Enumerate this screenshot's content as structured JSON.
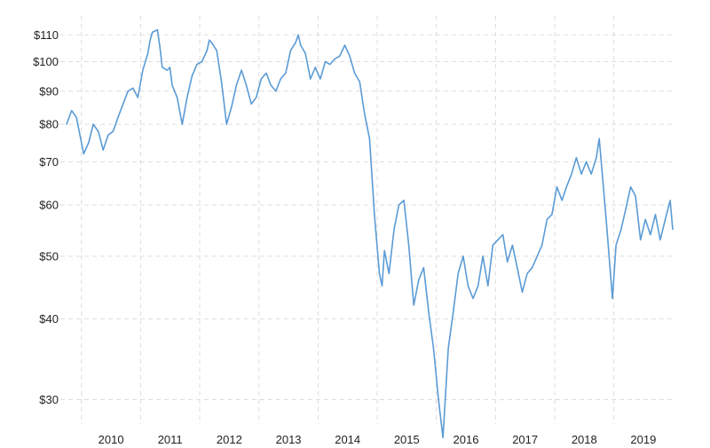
{
  "chart_data": {
    "type": "line",
    "title": "",
    "xlabel": "",
    "ylabel": "",
    "y_scale": "log",
    "ylim": [
      27.5,
      114
    ],
    "xlim": [
      "2009-10-01",
      "2019-12-31"
    ],
    "grid": true,
    "legend": "none",
    "y_ticks": [
      {
        "value": 110,
        "label": "$110"
      },
      {
        "value": 100,
        "label": "$100"
      },
      {
        "value": 90,
        "label": "$90"
      },
      {
        "value": 80,
        "label": "$80"
      },
      {
        "value": 70,
        "label": "$70"
      },
      {
        "value": 60,
        "label": "$60"
      },
      {
        "value": 50,
        "label": "$50"
      },
      {
        "value": 40,
        "label": "$40"
      },
      {
        "value": 30,
        "label": "$30"
      }
    ],
    "x_ticks": [
      {
        "value": "2010-01-01",
        "label": "2010"
      },
      {
        "value": "2011-01-01",
        "label": "2011"
      },
      {
        "value": "2012-01-01",
        "label": "2012"
      },
      {
        "value": "2013-01-01",
        "label": "2013"
      },
      {
        "value": "2014-01-01",
        "label": "2014"
      },
      {
        "value": "2015-01-01",
        "label": "2015"
      },
      {
        "value": "2016-01-01",
        "label": "2016"
      },
      {
        "value": "2017-01-01",
        "label": "2017"
      },
      {
        "value": "2018-01-01",
        "label": "2018"
      },
      {
        "value": "2019-01-01",
        "label": "2019"
      }
    ],
    "series": [
      {
        "color": "#5b9bd5",
        "points": [
          [
            "2009-10-01",
            80
          ],
          [
            "2009-11-01",
            84
          ],
          [
            "2009-12-01",
            82
          ],
          [
            "2010-01-15",
            72
          ],
          [
            "2010-02-15",
            75
          ],
          [
            "2010-03-15",
            80
          ],
          [
            "2010-04-15",
            78
          ],
          [
            "2010-05-15",
            73
          ],
          [
            "2010-06-15",
            77
          ],
          [
            "2010-07-15",
            78
          ],
          [
            "2010-08-15",
            82
          ],
          [
            "2010-09-15",
            86
          ],
          [
            "2010-10-15",
            90
          ],
          [
            "2010-11-15",
            91
          ],
          [
            "2010-12-15",
            88
          ],
          [
            "2011-01-15",
            97
          ],
          [
            "2011-02-15",
            103
          ],
          [
            "2011-03-01",
            108
          ],
          [
            "2011-03-15",
            111
          ],
          [
            "2011-04-15",
            112
          ],
          [
            "2011-05-01",
            105
          ],
          [
            "2011-05-15",
            98
          ],
          [
            "2011-06-15",
            97
          ],
          [
            "2011-07-01",
            98
          ],
          [
            "2011-07-15",
            92
          ],
          [
            "2011-08-15",
            88
          ],
          [
            "2011-09-15",
            80
          ],
          [
            "2011-10-15",
            88
          ],
          [
            "2011-11-15",
            95
          ],
          [
            "2011-12-15",
            99
          ],
          [
            "2012-01-15",
            100
          ],
          [
            "2012-02-15",
            104
          ],
          [
            "2012-03-01",
            108
          ],
          [
            "2012-03-15",
            107
          ],
          [
            "2012-04-15",
            104
          ],
          [
            "2012-05-15",
            93
          ],
          [
            "2012-06-15",
            80
          ],
          [
            "2012-07-15",
            85
          ],
          [
            "2012-08-15",
            92
          ],
          [
            "2012-09-15",
            97
          ],
          [
            "2012-10-15",
            92
          ],
          [
            "2012-11-15",
            86
          ],
          [
            "2012-12-15",
            88
          ],
          [
            "2013-01-15",
            94
          ],
          [
            "2013-02-15",
            96
          ],
          [
            "2013-03-15",
            92
          ],
          [
            "2013-04-15",
            90
          ],
          [
            "2013-05-15",
            94
          ],
          [
            "2013-06-15",
            96
          ],
          [
            "2013-07-15",
            104
          ],
          [
            "2013-08-15",
            107
          ],
          [
            "2013-09-01",
            110
          ],
          [
            "2013-09-15",
            106
          ],
          [
            "2013-10-15",
            103
          ],
          [
            "2013-11-15",
            94
          ],
          [
            "2013-12-15",
            98
          ],
          [
            "2014-01-15",
            94
          ],
          [
            "2014-02-15",
            100
          ],
          [
            "2014-03-15",
            99
          ],
          [
            "2014-04-15",
            101
          ],
          [
            "2014-05-15",
            102
          ],
          [
            "2014-06-15",
            106
          ],
          [
            "2014-07-15",
            102
          ],
          [
            "2014-08-15",
            96
          ],
          [
            "2014-09-15",
            93
          ],
          [
            "2014-10-15",
            83
          ],
          [
            "2014-11-15",
            76
          ],
          [
            "2014-12-15",
            58
          ],
          [
            "2015-01-15",
            47
          ],
          [
            "2015-01-31",
            45
          ],
          [
            "2015-02-15",
            51
          ],
          [
            "2015-03-15",
            47
          ],
          [
            "2015-04-15",
            55
          ],
          [
            "2015-05-15",
            60
          ],
          [
            "2015-06-15",
            61
          ],
          [
            "2015-07-15",
            52
          ],
          [
            "2015-08-15",
            42
          ],
          [
            "2015-09-15",
            46
          ],
          [
            "2015-10-15",
            48
          ],
          [
            "2015-11-15",
            41
          ],
          [
            "2015-12-15",
            36
          ],
          [
            "2016-01-15",
            30
          ],
          [
            "2016-02-11",
            26.2
          ],
          [
            "2016-03-15",
            36
          ],
          [
            "2016-04-15",
            41
          ],
          [
            "2016-05-15",
            47
          ],
          [
            "2016-06-15",
            50
          ],
          [
            "2016-07-15",
            45
          ],
          [
            "2016-08-15",
            43
          ],
          [
            "2016-09-15",
            45
          ],
          [
            "2016-10-15",
            50
          ],
          [
            "2016-11-15",
            45
          ],
          [
            "2016-12-15",
            52
          ],
          [
            "2017-01-15",
            53
          ],
          [
            "2017-02-15",
            54
          ],
          [
            "2017-03-15",
            49
          ],
          [
            "2017-04-15",
            52
          ],
          [
            "2017-05-15",
            48
          ],
          [
            "2017-06-15",
            44
          ],
          [
            "2017-07-15",
            47
          ],
          [
            "2017-08-15",
            48
          ],
          [
            "2017-09-15",
            50
          ],
          [
            "2017-10-15",
            52
          ],
          [
            "2017-11-15",
            57
          ],
          [
            "2017-12-15",
            58
          ],
          [
            "2018-01-15",
            64
          ],
          [
            "2018-02-15",
            61
          ],
          [
            "2018-03-15",
            64
          ],
          [
            "2018-04-15",
            67
          ],
          [
            "2018-05-15",
            71
          ],
          [
            "2018-06-15",
            67
          ],
          [
            "2018-07-15",
            70
          ],
          [
            "2018-08-15",
            67
          ],
          [
            "2018-09-15",
            71
          ],
          [
            "2018-10-03",
            76
          ],
          [
            "2018-11-15",
            57
          ],
          [
            "2018-12-24",
            43
          ],
          [
            "2019-01-15",
            52
          ],
          [
            "2019-02-15",
            55
          ],
          [
            "2019-03-15",
            59
          ],
          [
            "2019-04-15",
            64
          ],
          [
            "2019-05-15",
            62
          ],
          [
            "2019-06-15",
            53
          ],
          [
            "2019-07-15",
            57
          ],
          [
            "2019-08-15",
            54
          ],
          [
            "2019-09-15",
            58
          ],
          [
            "2019-10-15",
            53
          ],
          [
            "2019-11-15",
            57
          ],
          [
            "2019-12-15",
            61
          ],
          [
            "2019-12-31",
            55
          ]
        ]
      }
    ]
  }
}
